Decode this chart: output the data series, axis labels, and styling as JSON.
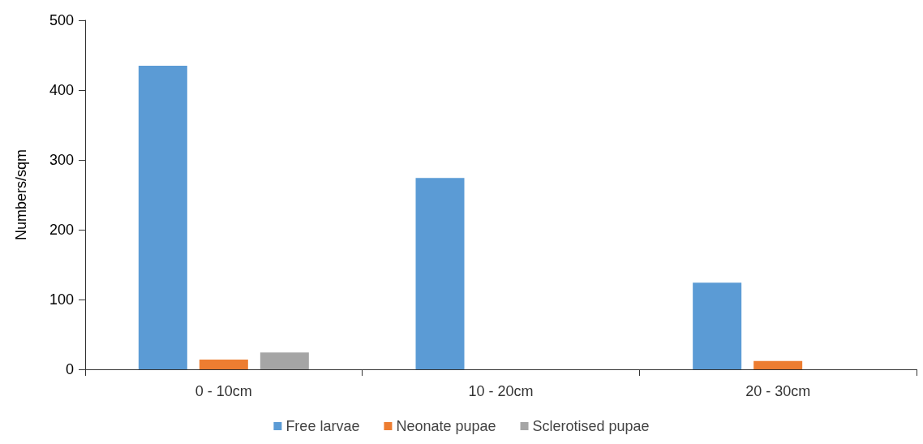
{
  "chart_data": {
    "type": "bar",
    "ylabel": "Numbers/sqm",
    "categories": [
      "0 - 10cm",
      "10 - 20cm",
      "20 - 30cm"
    ],
    "series": [
      {
        "name": "Free larvae",
        "color": "#5b9bd5",
        "values": [
          435,
          274,
          124
        ]
      },
      {
        "name": "Neonate pupae",
        "color": "#ed7d31",
        "values": [
          14,
          0,
          12
        ]
      },
      {
        "name": "Sclerotised pupae",
        "color": "#a5a5a5",
        "values": [
          24,
          0,
          0
        ]
      }
    ],
    "ylim": [
      0,
      500
    ],
    "yticks": [
      0,
      100,
      200,
      300,
      400,
      500
    ],
    "grid": false,
    "legend": "bottom"
  }
}
